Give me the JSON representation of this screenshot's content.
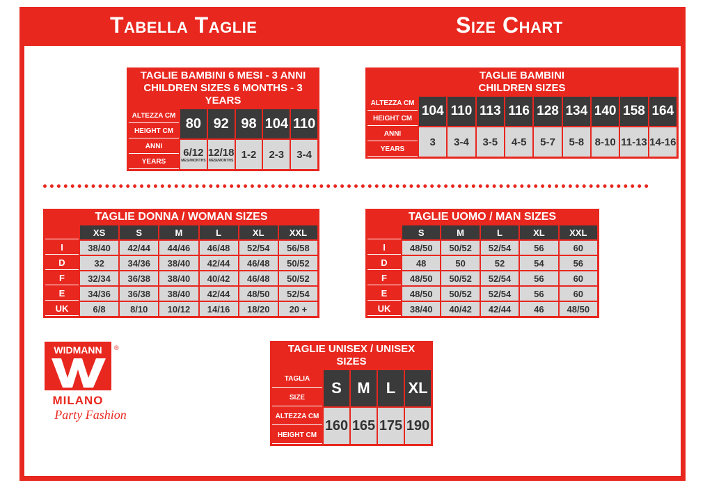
{
  "header": {
    "left": "Tabella Taglie",
    "right": "Size Chart"
  },
  "kids_small": {
    "title1": "TAGLIE BAMBINI 6 MESI - 3 ANNI",
    "title2": "CHILDREN SIZES 6 MONTHS - 3 YEARS",
    "row_labels": [
      "ALTEZZA CM",
      "HEIGHT CM",
      "ANNI",
      "YEARS"
    ],
    "top": [
      "80",
      "92",
      "98",
      "104",
      "110"
    ],
    "bottom": [
      "6/12",
      "12/18",
      "1-2",
      "2-3",
      "3-4"
    ],
    "bottom_notes": [
      "MESI/MONTHS",
      "MESI/MONTHS"
    ]
  },
  "kids_big": {
    "title1": "TAGLIE BAMBINI",
    "title2": "CHILDREN SIZES",
    "row_labels": [
      "ALTEZZA CM",
      "HEIGHT CM",
      "ANNI",
      "YEARS"
    ],
    "top": [
      "104",
      "110",
      "113",
      "116",
      "128",
      "134",
      "140",
      "158",
      "164"
    ],
    "bottom": [
      "3",
      "3-4",
      "3-5",
      "4-5",
      "5-7",
      "5-8",
      "8-10",
      "11-13",
      "14-16"
    ]
  },
  "woman": {
    "title": "TAGLIE DONNA / WOMAN SIZES",
    "sizes": [
      "XS",
      "S",
      "M",
      "L",
      "XL",
      "XXL"
    ],
    "rows": [
      {
        "label": "I",
        "values": [
          "38/40",
          "42/44",
          "44/46",
          "46/48",
          "52/54",
          "56/58"
        ]
      },
      {
        "label": "D",
        "values": [
          "32",
          "34/36",
          "38/40",
          "42/44",
          "46/48",
          "50/52"
        ]
      },
      {
        "label": "F",
        "values": [
          "32/34",
          "36/38",
          "38/40",
          "40/42",
          "46/48",
          "50/52"
        ]
      },
      {
        "label": "E",
        "values": [
          "34/36",
          "36/38",
          "38/40",
          "42/44",
          "48/50",
          "52/54"
        ]
      },
      {
        "label": "UK",
        "values": [
          "6/8",
          "8/10",
          "10/12",
          "14/16",
          "18/20",
          "20 +"
        ]
      }
    ]
  },
  "man": {
    "title": "TAGLIE UOMO / MAN SIZES",
    "sizes": [
      "S",
      "M",
      "L",
      "XL",
      "XXL"
    ],
    "rows": [
      {
        "label": "I",
        "values": [
          "48/50",
          "50/52",
          "52/54",
          "56",
          "60"
        ]
      },
      {
        "label": "D",
        "values": [
          "48",
          "50",
          "52",
          "54",
          "56"
        ]
      },
      {
        "label": "F",
        "values": [
          "48/50",
          "50/52",
          "52/54",
          "56",
          "60"
        ]
      },
      {
        "label": "E",
        "values": [
          "48/50",
          "50/52",
          "52/54",
          "56",
          "60"
        ]
      },
      {
        "label": "UK",
        "values": [
          "38/40",
          "40/42",
          "42/44",
          "46",
          "48/50"
        ]
      }
    ]
  },
  "unisex": {
    "title1": "TAGLIE UNISEX / UNISEX SIZES",
    "row_labels": [
      "TAGLIA",
      "SIZE",
      "ALTEZZA CM",
      "HEIGHT CM"
    ],
    "top": [
      "S",
      "M",
      "L",
      "XL"
    ],
    "bottom": [
      "160",
      "165",
      "175",
      "190"
    ]
  },
  "logo": {
    "brand": "WIDMANN",
    "reg": "®",
    "city": "MILANO",
    "tagline": "Party Fashion"
  }
}
